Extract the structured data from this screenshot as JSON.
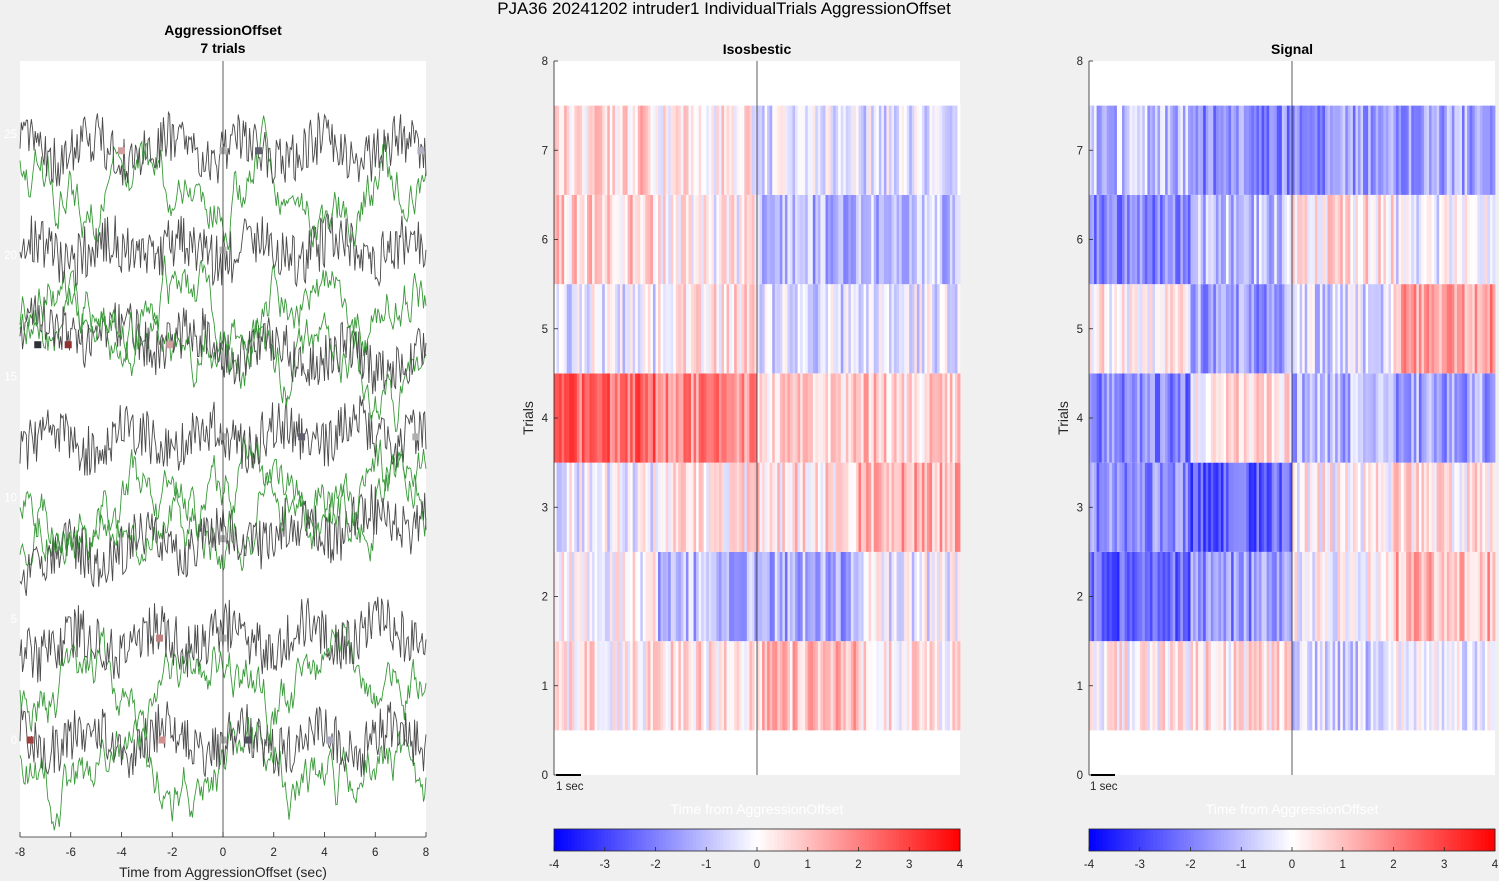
{
  "figure": {
    "title": "PJA36 20241202  intruder1 IndividualTrials AggressionOffset",
    "colors": {
      "trace_black": "#4a4a4a",
      "trace_green": "#3a9a3a",
      "heat_low": "#0000ff",
      "heat_mid": "#ffffff",
      "heat_high": "#ff0000"
    }
  },
  "chart_data": [
    {
      "type": "line",
      "title": "AggressionOffset",
      "subtitle": "7 trials",
      "xlabel": "Time from AggressionOffset (sec)",
      "ylabel": "",
      "xlim": [
        -8,
        8
      ],
      "ylim": [
        -4,
        28
      ],
      "xticks": [
        -8,
        -6,
        -4,
        -2,
        0,
        2,
        4,
        6,
        8
      ],
      "yticks": [
        0,
        5,
        10,
        15,
        20,
        25
      ],
      "vline_x": 0,
      "series": [
        {
          "trial": 1,
          "black_offset": 0.0,
          "green_offset": -1.2,
          "trend": 0.0,
          "markers": [
            {
              "x": -7.6,
              "color": "#a04040"
            },
            {
              "x": -2.4,
              "color": "#d09090"
            },
            {
              "x": 0.0,
              "color": "#b0b0b0"
            },
            {
              "x": 1.0,
              "color": "#505060"
            },
            {
              "x": 4.2,
              "color": "#a8a8b8"
            }
          ]
        },
        {
          "trial": 2,
          "black_offset": 4.2,
          "green_offset": 2.5,
          "trend": 0.5,
          "markers": [
            {
              "x": -2.5,
              "color": "#c08080"
            },
            {
              "x": 0.0,
              "color": "#b0b0b0"
            }
          ]
        },
        {
          "trial": 3,
          "black_offset": 8.3,
          "green_offset": 9.2,
          "trend": 1.5,
          "markers": [
            {
              "x": 0.0,
              "color": "#b0b0b0"
            }
          ]
        },
        {
          "trial": 4,
          "black_offset": 12.5,
          "green_offset": 9.8,
          "trend": 0.3,
          "markers": [
            {
              "x": 0.0,
              "color": "#b0b0b0"
            },
            {
              "x": 3.1,
              "color": "#606070"
            },
            {
              "x": 7.6,
              "color": "#b0b0b0"
            }
          ]
        },
        {
          "trial": 5,
          "black_offset": 16.3,
          "green_offset": 16.0,
          "trend": -1.5,
          "markers": [
            {
              "x": -7.3,
              "color": "#303038"
            },
            {
              "x": -6.1,
              "color": "#903030"
            },
            {
              "x": -2.1,
              "color": "#d0a0a0"
            }
          ]
        },
        {
          "trial": 6,
          "black_offset": 20.2,
          "green_offset": 17.8,
          "trend": 0.0,
          "markers": [
            {
              "x": 0.0,
              "color": "#b0b0b0"
            }
          ]
        },
        {
          "trial": 7,
          "black_offset": 24.3,
          "green_offset": 22.8,
          "trend": 0.0,
          "markers": [
            {
              "x": -4.0,
              "color": "#d0a0a0"
            },
            {
              "x": 0.0,
              "color": "#b0b0b0"
            },
            {
              "x": 1.4,
              "color": "#606070"
            },
            {
              "x": 7.8,
              "color": "#b0b0c0"
            }
          ]
        }
      ]
    },
    {
      "type": "heatmap",
      "title": "Isosbestic",
      "xlabel": "Time from AggressionOffset",
      "ylabel": "Trials",
      "xlim": [
        -8,
        8
      ],
      "ylim": [
        0,
        8
      ],
      "yticks": [
        0,
        1,
        2,
        3,
        4,
        5,
        6,
        7,
        8
      ],
      "scalebar": "1 sec",
      "clim": [
        -4,
        4
      ],
      "colorbar_ticks": [
        -4,
        -3,
        -2,
        -1,
        0,
        1,
        2,
        3,
        4
      ],
      "rows": [
        {
          "trial": 1,
          "segments": [
            {
              "t0": -8,
              "t1": -4,
              "v": 0.3
            },
            {
              "t0": -4,
              "t1": 0,
              "v": 0.4
            },
            {
              "t0": 0,
              "t1": 4,
              "v": 1.1
            },
            {
              "t0": 4,
              "t1": 8,
              "v": 0.3
            }
          ]
        },
        {
          "trial": 2,
          "segments": [
            {
              "t0": -8,
              "t1": -4,
              "v": 0.0
            },
            {
              "t0": -4,
              "t1": 0,
              "v": -1.1
            },
            {
              "t0": 0,
              "t1": 4,
              "v": -1.3
            },
            {
              "t0": 4,
              "t1": 8,
              "v": -0.3
            }
          ]
        },
        {
          "trial": 3,
          "segments": [
            {
              "t0": -8,
              "t1": -4,
              "v": -0.2
            },
            {
              "t0": -4,
              "t1": 0,
              "v": 0.3
            },
            {
              "t0": 0,
              "t1": 4,
              "v": 0.5
            },
            {
              "t0": 4,
              "t1": 8,
              "v": 1.3
            }
          ]
        },
        {
          "trial": 4,
          "segments": [
            {
              "t0": -8,
              "t1": -4,
              "v": 2.3
            },
            {
              "t0": -4,
              "t1": 0,
              "v": 1.8
            },
            {
              "t0": 0,
              "t1": 4,
              "v": 0.6
            },
            {
              "t0": 4,
              "t1": 8,
              "v": 0.8
            }
          ]
        },
        {
          "trial": 5,
          "segments": [
            {
              "t0": -8,
              "t1": -4,
              "v": -0.3
            },
            {
              "t0": -4,
              "t1": 0,
              "v": 0.4
            },
            {
              "t0": 0,
              "t1": 4,
              "v": -0.6
            },
            {
              "t0": 4,
              "t1": 8,
              "v": -0.4
            }
          ]
        },
        {
          "trial": 6,
          "segments": [
            {
              "t0": -8,
              "t1": -4,
              "v": 0.7
            },
            {
              "t0": -4,
              "t1": 0,
              "v": 0.1
            },
            {
              "t0": 0,
              "t1": 4,
              "v": -1.2
            },
            {
              "t0": 4,
              "t1": 8,
              "v": -1.0
            }
          ]
        },
        {
          "trial": 7,
          "segments": [
            {
              "t0": -8,
              "t1": -4,
              "v": 0.7
            },
            {
              "t0": -4,
              "t1": 0,
              "v": 0.2
            },
            {
              "t0": 0,
              "t1": 4,
              "v": -0.4
            },
            {
              "t0": 4,
              "t1": 8,
              "v": -0.5
            }
          ]
        }
      ]
    },
    {
      "type": "heatmap",
      "title": "Signal",
      "xlabel": "Time from AggressionOffset",
      "ylabel": "Trials",
      "xlim": [
        -8,
        8
      ],
      "ylim": [
        0,
        8
      ],
      "yticks": [
        0,
        1,
        2,
        3,
        4,
        5,
        6,
        7,
        8
      ],
      "scalebar": "1 sec",
      "clim": [
        -4,
        4
      ],
      "colorbar_ticks": [
        -4,
        -3,
        -2,
        -1,
        0,
        1,
        2,
        3,
        4
      ],
      "rows": [
        {
          "trial": 1,
          "segments": [
            {
              "t0": -8,
              "t1": -4,
              "v": 0.2
            },
            {
              "t0": -4,
              "t1": 0,
              "v": 0.4
            },
            {
              "t0": 0,
              "t1": 4,
              "v": -0.7
            },
            {
              "t0": 4,
              "t1": 8,
              "v": -0.3
            }
          ]
        },
        {
          "trial": 2,
          "segments": [
            {
              "t0": -8,
              "t1": -4,
              "v": -2.4
            },
            {
              "t0": -4,
              "t1": 0,
              "v": -1.7
            },
            {
              "t0": 0,
              "t1": 4,
              "v": -0.1
            },
            {
              "t0": 4,
              "t1": 8,
              "v": 1.2
            }
          ]
        },
        {
          "trial": 3,
          "segments": [
            {
              "t0": -8,
              "t1": -4,
              "v": -1.8
            },
            {
              "t0": -4,
              "t1": 0,
              "v": -2.5
            },
            {
              "t0": 0,
              "t1": 4,
              "v": 0.1
            },
            {
              "t0": 4,
              "t1": 8,
              "v": 0.4
            }
          ]
        },
        {
          "trial": 4,
          "segments": [
            {
              "t0": -8,
              "t1": -4,
              "v": -2.0
            },
            {
              "t0": -4,
              "t1": 0,
              "v": 0.4
            },
            {
              "t0": 0,
              "t1": 4,
              "v": -1.2
            },
            {
              "t0": 4,
              "t1": 8,
              "v": -1.4
            }
          ]
        },
        {
          "trial": 5,
          "segments": [
            {
              "t0": -8,
              "t1": -4,
              "v": 0.2
            },
            {
              "t0": -4,
              "t1": 0,
              "v": -1.5
            },
            {
              "t0": 0,
              "t1": 4,
              "v": -0.6
            },
            {
              "t0": 4,
              "t1": 8,
              "v": 1.6
            }
          ]
        },
        {
          "trial": 6,
          "segments": [
            {
              "t0": -8,
              "t1": -4,
              "v": -2.0
            },
            {
              "t0": -4,
              "t1": 0,
              "v": -1.0
            },
            {
              "t0": 0,
              "t1": 4,
              "v": 0.5
            },
            {
              "t0": 4,
              "t1": 8,
              "v": -0.3
            }
          ]
        },
        {
          "trial": 7,
          "segments": [
            {
              "t0": -8,
              "t1": -4,
              "v": -1.0
            },
            {
              "t0": -4,
              "t1": 0,
              "v": -1.8
            },
            {
              "t0": 0,
              "t1": 4,
              "v": -1.6
            },
            {
              "t0": 4,
              "t1": 8,
              "v": -1.4
            }
          ]
        }
      ]
    }
  ]
}
